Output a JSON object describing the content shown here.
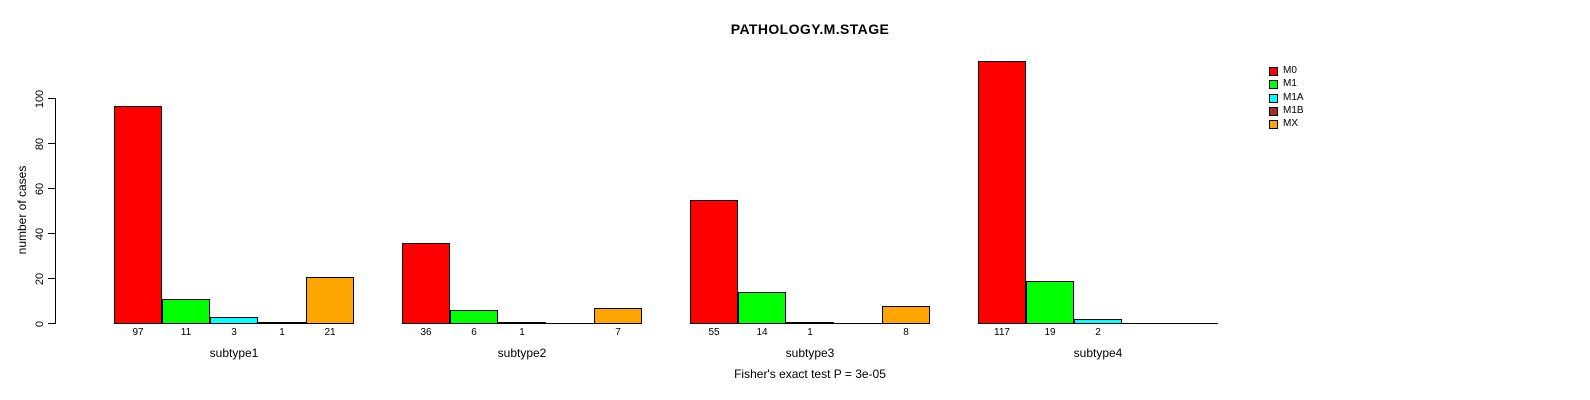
{
  "chart_data": {
    "type": "bar",
    "title": "PATHOLOGY.M.STAGE",
    "ylabel": "number of cases",
    "xlabel": "",
    "footnote": "Fisher's exact test P = 3e-05",
    "ylim": [
      0,
      100
    ],
    "y_ticks": [
      0,
      20,
      40,
      60,
      80,
      100
    ],
    "grid": false,
    "legend_position": "right",
    "categories": [
      "M0",
      "M1",
      "M1A",
      "M1B",
      "MX"
    ],
    "series_colors": [
      "#FF0000",
      "#00FF00",
      "#00FFFF",
      "#A52A2A",
      "#FFA500"
    ],
    "groups": [
      {
        "label": "subtype1",
        "values": [
          97,
          11,
          3,
          1,
          21
        ]
      },
      {
        "label": "subtype2",
        "values": [
          36,
          6,
          1,
          0,
          7
        ]
      },
      {
        "label": "subtype3",
        "values": [
          55,
          14,
          1,
          0,
          8
        ]
      },
      {
        "label": "subtype4",
        "values": [
          117,
          19,
          2,
          0,
          0
        ]
      }
    ],
    "legend": {
      "entries": [
        "M0",
        "M1",
        "M1A",
        "M1B",
        "MX"
      ]
    }
  }
}
